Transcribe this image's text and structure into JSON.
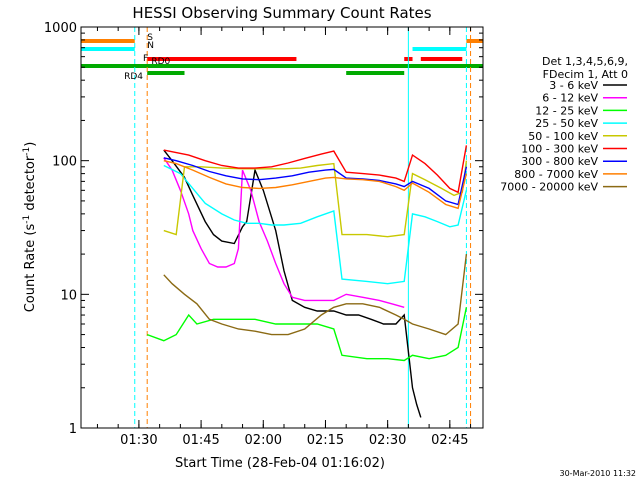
{
  "chart_data": {
    "type": "line",
    "title": "HESSI Observing Summary Count Rates",
    "xlabel": "Start Time (28-Feb-04 01:16:02)",
    "ylabel_prefix": "Count Rate (s",
    "ylabel_sup": "-1",
    "ylabel_suffix": " detector",
    "ylabel_close": ")",
    "y_scale": "log",
    "ylim": [
      1,
      1000
    ],
    "xlim": [
      "01:16:02",
      "02:53:00"
    ],
    "x_ticks": [
      "01:30",
      "01:45",
      "02:00",
      "02:15",
      "02:30",
      "02:45"
    ],
    "y_ticks": [
      "1",
      "10",
      "100",
      "1000"
    ],
    "footer": "30-Mar-2010 11:32",
    "legend_header": [
      "Det 1,3,4,5,6,9,",
      "FDecim 1, Att 0"
    ],
    "legend_placement": "right",
    "colors": {
      "S": "#ff7f00",
      "N": "#00ffff",
      "F": "#ff0000",
      "R": "#00aa00"
    },
    "flag_labels": [
      "S",
      "N",
      "F",
      "RD0",
      "RD4"
    ],
    "flags": [
      {
        "name": "S",
        "segments": [
          [
            "01:16:02",
            "01:29"
          ],
          [
            "02:49",
            "02:53:00"
          ]
        ]
      },
      {
        "name": "N",
        "segments": [
          [
            "01:16:02",
            "01:29"
          ],
          [
            "02:36",
            "02:49"
          ]
        ]
      },
      {
        "name": "F",
        "segments": [
          [
            "01:32",
            "02:08"
          ],
          [
            "02:34",
            "02:36"
          ],
          [
            "02:38",
            "02:48"
          ]
        ]
      },
      {
        "name": "RD0",
        "segments": [
          [
            "01:16:02",
            "02:53:00"
          ]
        ]
      },
      {
        "name": "RD4",
        "segments": [
          [
            "01:32",
            "01:41"
          ],
          [
            "02:20",
            "02:34"
          ]
        ]
      }
    ],
    "vlines": [
      {
        "time": "01:29",
        "color": "#00ffff",
        "style": "dashed"
      },
      {
        "time": "01:32",
        "color": "#ff7f00",
        "style": "dashed"
      },
      {
        "time": "02:35",
        "color": "#00ffff",
        "style": "solid"
      },
      {
        "time": "02:49",
        "color": "#00ffff",
        "style": "dashed"
      },
      {
        "time": "02:50",
        "color": "#ff7f00",
        "style": "dashed"
      },
      {
        "time": "01:16:02",
        "color": "#00ffff",
        "style": "solid"
      }
    ],
    "series": [
      {
        "name": "3 - 6 keV",
        "color": "#000000",
        "points": [
          [
            "01:36",
            120
          ],
          [
            "01:38",
            100
          ],
          [
            "01:41",
            75
          ],
          [
            "01:43",
            55
          ],
          [
            "01:46",
            35
          ],
          [
            "01:48",
            28
          ],
          [
            "01:50",
            25
          ],
          [
            "01:53",
            24
          ],
          [
            "01:55",
            32
          ],
          [
            "01:56",
            35
          ],
          [
            "01:58",
            85
          ],
          [
            "02:00",
            60
          ],
          [
            "02:03",
            30
          ],
          [
            "02:05",
            15
          ],
          [
            "02:07",
            9
          ],
          [
            "02:10",
            8
          ],
          [
            "02:13",
            7.5
          ],
          [
            "02:17",
            7.5
          ],
          [
            "02:20",
            7
          ],
          [
            "02:23",
            7
          ],
          [
            "02:26",
            6.5
          ],
          [
            "02:29",
            6
          ],
          [
            "02:32",
            6
          ],
          [
            "02:34",
            7
          ],
          [
            "02:36",
            2
          ],
          [
            "02:37",
            1.5
          ],
          [
            "02:38",
            1.2
          ]
        ]
      },
      {
        "name": "6 - 12 keV",
        "color": "#ff00ff",
        "points": [
          [
            "01:36",
            105
          ],
          [
            "01:38",
            85
          ],
          [
            "01:40",
            60
          ],
          [
            "01:42",
            40
          ],
          [
            "01:43",
            30
          ],
          [
            "01:45",
            22
          ],
          [
            "01:47",
            17
          ],
          [
            "01:49",
            16
          ],
          [
            "01:51",
            16
          ],
          [
            "01:53",
            17
          ],
          [
            "01:54",
            22
          ],
          [
            "01:55",
            85
          ],
          [
            "01:57",
            60
          ],
          [
            "01:59",
            35
          ],
          [
            "02:01",
            25
          ],
          [
            "02:03",
            17
          ],
          [
            "02:05",
            12
          ],
          [
            "02:07",
            9.5
          ],
          [
            "02:10",
            9
          ],
          [
            "02:13",
            9
          ],
          [
            "02:17",
            9
          ],
          [
            "02:20",
            10
          ],
          [
            "02:24",
            9.5
          ],
          [
            "02:28",
            9
          ],
          [
            "02:31",
            8.5
          ],
          [
            "02:34",
            8
          ]
        ]
      },
      {
        "name": "12 - 25 keV",
        "color": "#00ff00",
        "points": [
          [
            "01:32",
            5
          ],
          [
            "01:36",
            4.5
          ],
          [
            "01:39",
            5
          ],
          [
            "01:42",
            7
          ],
          [
            "01:44",
            6
          ],
          [
            "01:48",
            6.5
          ],
          [
            "01:53",
            6.5
          ],
          [
            "01:58",
            6.5
          ],
          [
            "02:03",
            6
          ],
          [
            "02:08",
            6
          ],
          [
            "02:13",
            6
          ],
          [
            "02:17",
            5.5
          ],
          [
            "02:19",
            3.5
          ],
          [
            "02:25",
            3.3
          ],
          [
            "02:30",
            3.3
          ],
          [
            "02:34",
            3.2
          ],
          [
            "02:36",
            3.5
          ],
          [
            "02:40",
            3.3
          ],
          [
            "02:44",
            3.5
          ],
          [
            "02:47",
            4
          ],
          [
            "02:49",
            8
          ]
        ]
      },
      {
        "name": "25 - 50 keV",
        "color": "#00ffff",
        "points": [
          [
            "01:36",
            92
          ],
          [
            "01:40",
            80
          ],
          [
            "01:43",
            62
          ],
          [
            "01:46",
            48
          ],
          [
            "01:50",
            40
          ],
          [
            "01:53",
            36
          ],
          [
            "01:56",
            34
          ],
          [
            "01:59",
            34
          ],
          [
            "02:02",
            33
          ],
          [
            "02:05",
            33
          ],
          [
            "02:09",
            34
          ],
          [
            "02:13",
            38
          ],
          [
            "02:17",
            42
          ],
          [
            "02:19",
            13
          ],
          [
            "02:25",
            12.5
          ],
          [
            "02:30",
            12
          ],
          [
            "02:34",
            12.5
          ],
          [
            "02:36",
            40
          ],
          [
            "02:39",
            38
          ],
          [
            "02:42",
            35
          ],
          [
            "02:45",
            32
          ],
          [
            "02:47",
            33
          ],
          [
            "02:49",
            60
          ]
        ]
      },
      {
        "name": "50 - 100 keV",
        "color": "#c8c800",
        "points": [
          [
            "01:36",
            30
          ],
          [
            "01:39",
            28
          ],
          [
            "01:41",
            90
          ],
          [
            "01:45",
            90
          ],
          [
            "01:50",
            88
          ],
          [
            "01:55",
            87
          ],
          [
            "02:00",
            87
          ],
          [
            "02:05",
            87
          ],
          [
            "02:09",
            88
          ],
          [
            "02:13",
            92
          ],
          [
            "02:17",
            95
          ],
          [
            "02:19",
            28
          ],
          [
            "02:25",
            28
          ],
          [
            "02:30",
            27
          ],
          [
            "02:34",
            28
          ],
          [
            "02:36",
            80
          ],
          [
            "02:39",
            72
          ],
          [
            "02:43",
            62
          ],
          [
            "02:46",
            55
          ],
          [
            "02:48",
            58
          ],
          [
            "02:49",
            100
          ]
        ]
      },
      {
        "name": "100 - 300 keV",
        "color": "#ff0000",
        "points": [
          [
            "01:36",
            120
          ],
          [
            "01:39",
            115
          ],
          [
            "01:42",
            110
          ],
          [
            "01:46",
            100
          ],
          [
            "01:50",
            92
          ],
          [
            "01:54",
            88
          ],
          [
            "01:58",
            88
          ],
          [
            "02:02",
            90
          ],
          [
            "02:06",
            96
          ],
          [
            "02:10",
            104
          ],
          [
            "02:14",
            112
          ],
          [
            "02:17",
            118
          ],
          [
            "02:20",
            82
          ],
          [
            "02:24",
            80
          ],
          [
            "02:28",
            78
          ],
          [
            "02:32",
            74
          ],
          [
            "02:34",
            70
          ],
          [
            "02:36",
            110
          ],
          [
            "02:39",
            95
          ],
          [
            "02:42",
            78
          ],
          [
            "02:45",
            62
          ],
          [
            "02:47",
            58
          ],
          [
            "02:49",
            130
          ]
        ]
      },
      {
        "name": "300 - 800 keV",
        "color": "#0000ff",
        "points": [
          [
            "01:36",
            105
          ],
          [
            "01:39",
            100
          ],
          [
            "01:43",
            92
          ],
          [
            "01:47",
            83
          ],
          [
            "01:51",
            77
          ],
          [
            "01:55",
            73
          ],
          [
            "01:59",
            72
          ],
          [
            "02:03",
            74
          ],
          [
            "02:07",
            77
          ],
          [
            "02:11",
            82
          ],
          [
            "02:15",
            85
          ],
          [
            "02:17",
            86
          ],
          [
            "02:20",
            74
          ],
          [
            "02:24",
            73
          ],
          [
            "02:28",
            71
          ],
          [
            "02:32",
            67
          ],
          [
            "02:34",
            64
          ],
          [
            "02:36",
            70
          ],
          [
            "02:40",
            62
          ],
          [
            "02:44",
            50
          ],
          [
            "02:47",
            47
          ],
          [
            "02:49",
            90
          ]
        ]
      },
      {
        "name": "800 - 7000 keV",
        "color": "#ff7f00",
        "points": [
          [
            "01:36",
            100
          ],
          [
            "01:39",
            95
          ],
          [
            "01:43",
            85
          ],
          [
            "01:47",
            75
          ],
          [
            "01:51",
            67
          ],
          [
            "01:55",
            63
          ],
          [
            "01:59",
            62
          ],
          [
            "02:03",
            63
          ],
          [
            "02:07",
            66
          ],
          [
            "02:11",
            70
          ],
          [
            "02:15",
            74
          ],
          [
            "02:17",
            75
          ],
          [
            "02:20",
            73
          ],
          [
            "02:24",
            72
          ],
          [
            "02:28",
            70
          ],
          [
            "02:32",
            64
          ],
          [
            "02:34",
            60
          ],
          [
            "02:36",
            68
          ],
          [
            "02:40",
            58
          ],
          [
            "02:44",
            47
          ],
          [
            "02:47",
            44
          ],
          [
            "02:49",
            80
          ]
        ]
      },
      {
        "name": "7000 - 20000 keV",
        "color": "#8b6a14",
        "points": [
          [
            "01:36",
            14
          ],
          [
            "01:38",
            12
          ],
          [
            "01:41",
            10
          ],
          [
            "01:44",
            8.5
          ],
          [
            "01:47",
            6.5
          ],
          [
            "01:50",
            6
          ],
          [
            "01:54",
            5.5
          ],
          [
            "01:58",
            5.3
          ],
          [
            "02:02",
            5
          ],
          [
            "02:06",
            5
          ],
          [
            "02:10",
            5.5
          ],
          [
            "02:14",
            7
          ],
          [
            "02:17",
            8
          ],
          [
            "02:20",
            8.5
          ],
          [
            "02:24",
            8.5
          ],
          [
            "02:28",
            8
          ],
          [
            "02:32",
            7
          ],
          [
            "02:34",
            6.5
          ],
          [
            "02:36",
            6
          ],
          [
            "02:40",
            5.5
          ],
          [
            "02:44",
            5
          ],
          [
            "02:47",
            6
          ],
          [
            "02:49",
            20
          ]
        ]
      }
    ]
  }
}
